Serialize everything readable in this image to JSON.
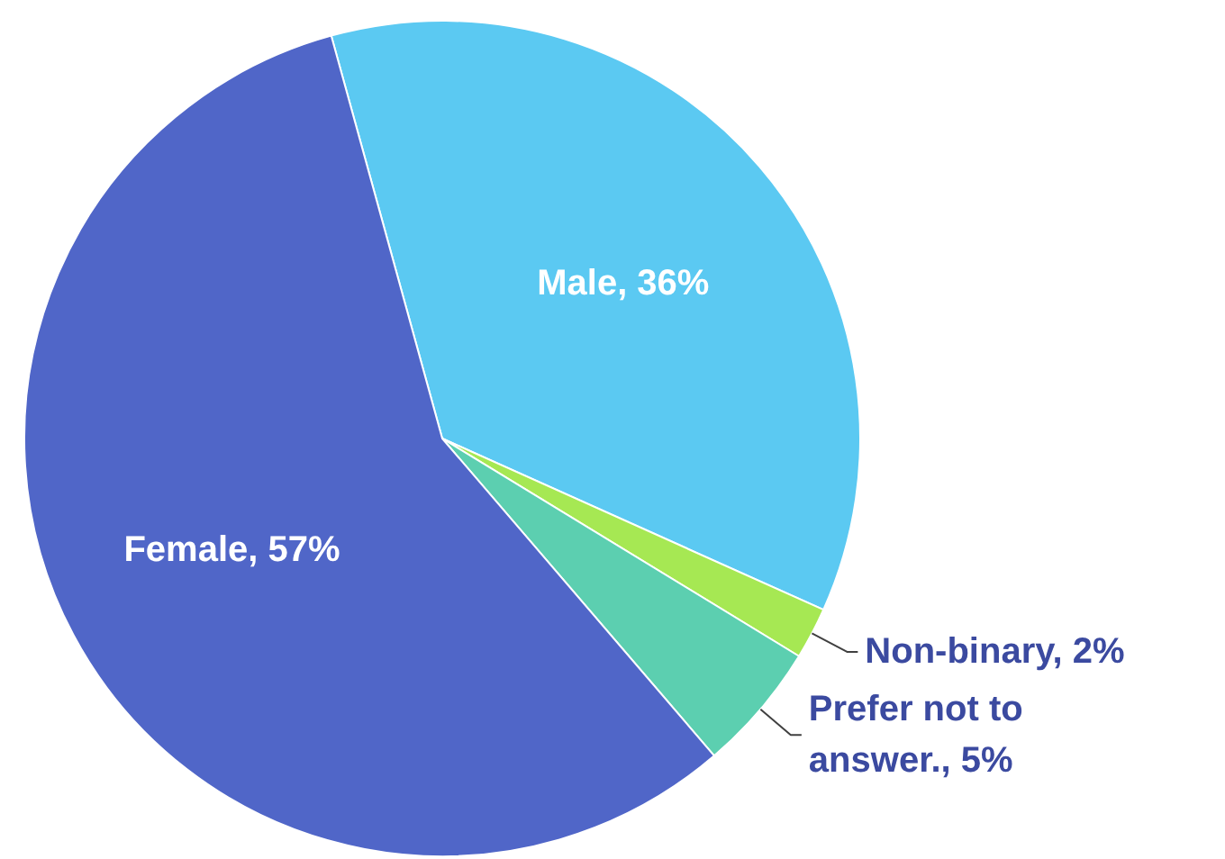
{
  "chart_data": {
    "type": "pie",
    "categories": [
      "Male",
      "Non-binary",
      "Prefer not to answer.",
      "Female"
    ],
    "values": [
      36,
      2,
      5,
      57
    ],
    "value_labels": [
      "36%",
      "2%",
      "5%",
      "57%"
    ],
    "colors": [
      "#5bc9f2",
      "#a6e853",
      "#5ccfb0",
      "#5066c8"
    ]
  }
}
